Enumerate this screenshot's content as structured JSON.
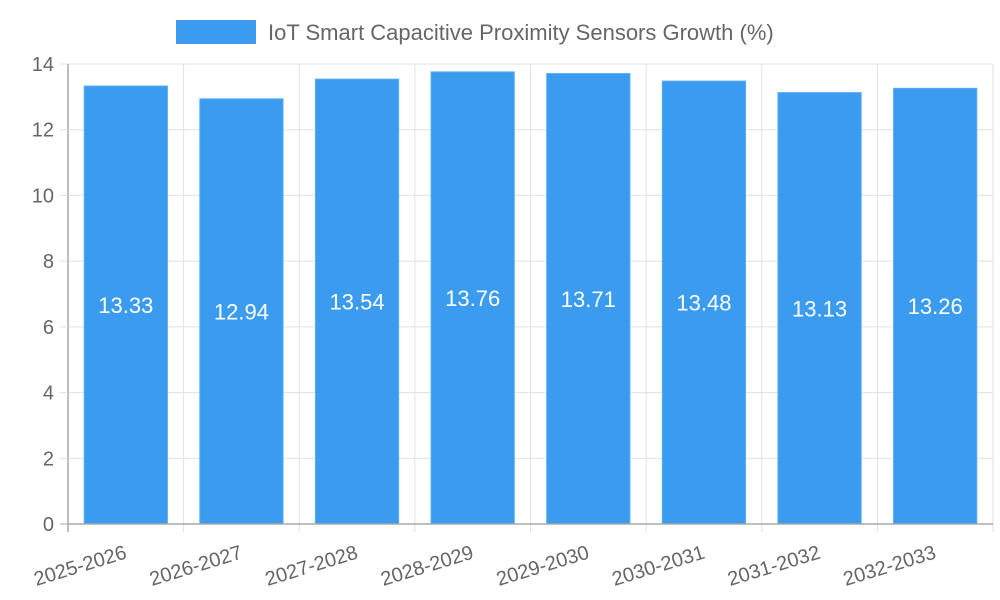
{
  "chart_data": {
    "type": "bar",
    "title": "",
    "xlabel": "",
    "ylabel": "",
    "categories": [
      "2025-2026",
      "2026-2027",
      "2027-2028",
      "2028-2029",
      "2029-2030",
      "2030-2031",
      "2031-2032",
      "2032-2033"
    ],
    "series": [
      {
        "name": "IoT Smart Capacitive Proximity Sensors Growth (%)",
        "values": [
          13.33,
          12.94,
          13.54,
          13.76,
          13.71,
          13.48,
          13.13,
          13.26
        ],
        "color": "#3a9bef"
      }
    ],
    "data_labels": [
      "13.33",
      "12.94",
      "13.54",
      "13.76",
      "13.71",
      "13.48",
      "13.13",
      "13.26"
    ],
    "ylim": [
      0,
      14
    ],
    "yticks": [
      0,
      2,
      4,
      6,
      8,
      10,
      12,
      14
    ],
    "ytick_labels": [
      "0",
      "2",
      "4",
      "6",
      "8",
      "10",
      "12",
      "14"
    ],
    "grid": true,
    "legend_position": "top-center",
    "xtick_rotation": "diagonal"
  }
}
